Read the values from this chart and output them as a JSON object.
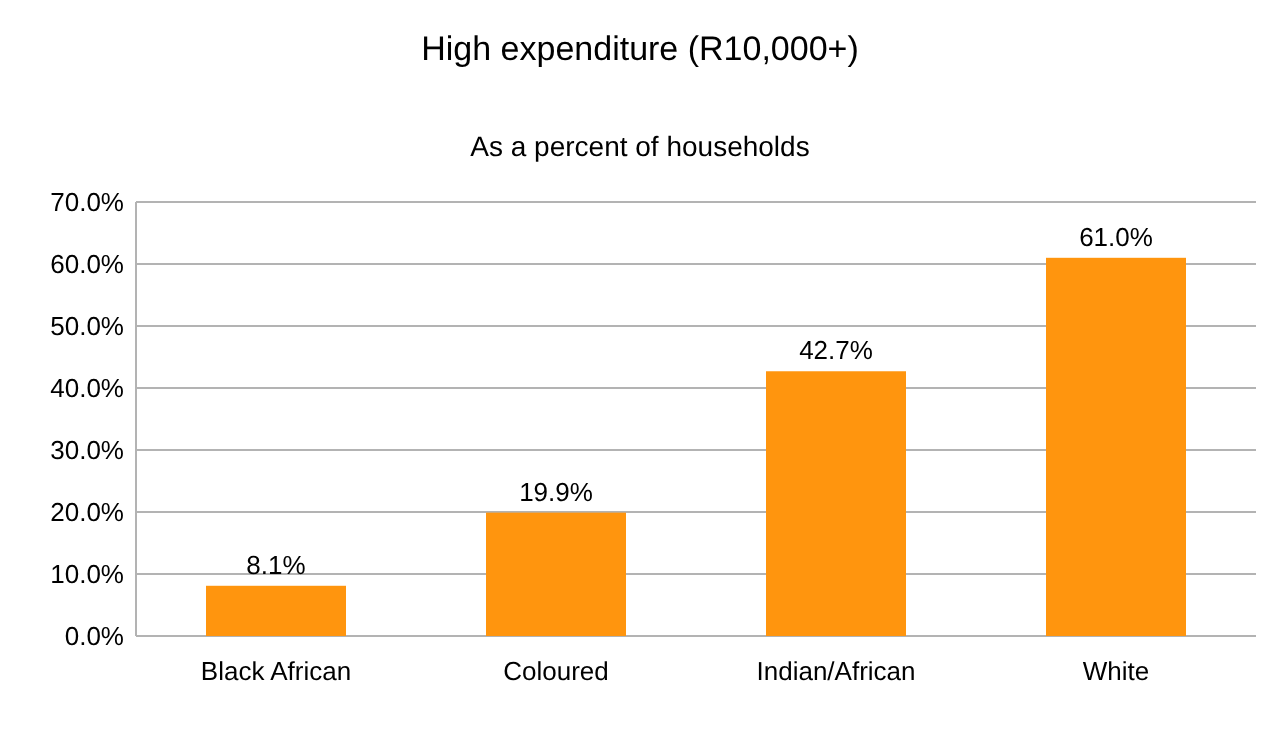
{
  "chart_data": {
    "type": "bar",
    "title": "High expenditure (R10,000+)",
    "subtitle": "As a percent of households",
    "categories": [
      "Black African",
      "Coloured",
      "Indian/African",
      "White"
    ],
    "values": [
      8.1,
      19.9,
      42.7,
      61.0
    ],
    "color": "#ff950e",
    "value_labels": [
      "8.1%",
      "19.9%",
      "42.7%",
      "61.0%"
    ],
    "ylim": [
      0,
      70
    ],
    "yticks": [
      {
        "value": 0,
        "label": "0.0%"
      },
      {
        "value": 10,
        "label": "10.0%"
      },
      {
        "value": 20,
        "label": "20.0%"
      },
      {
        "value": 30,
        "label": "30.0%"
      },
      {
        "value": 40,
        "label": "40.0%"
      },
      {
        "value": 50,
        "label": "50.0%"
      },
      {
        "value": 60,
        "label": "60.0%"
      },
      {
        "value": 70,
        "label": "70.0%"
      }
    ],
    "grid": "y"
  }
}
